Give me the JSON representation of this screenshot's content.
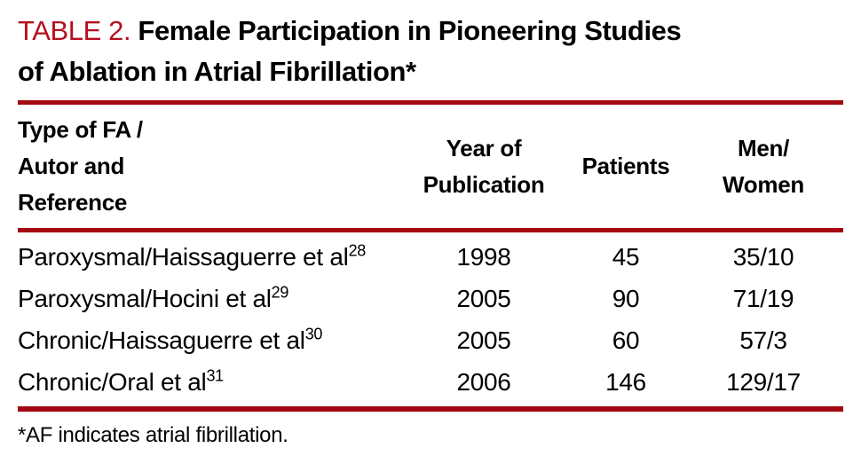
{
  "title": {
    "label": "TABLE 2.",
    "line1": "Female Participation in Pioneering Studies",
    "line2": "of Ablation in Atrial Fibrillation",
    "footnote_marker": "*"
  },
  "colors": {
    "rule_red": "#a40812",
    "title_label_red": "#b5101d",
    "text_black": "#000000",
    "background": "#ffffff"
  },
  "table": {
    "headers": {
      "col1": {
        "lines": [
          "Type of FA /",
          "Autor and",
          "Reference"
        ]
      },
      "col2": {
        "lines": [
          "Year of",
          "Publication"
        ]
      },
      "col3": {
        "lines": [
          "Patients"
        ]
      },
      "col4": {
        "lines": [
          "Men/",
          "Women"
        ]
      }
    },
    "rows": [
      {
        "study": "Paroxysmal/Haissaguerre et al",
        "ref": "28",
        "year": "1998",
        "patients": "45",
        "men_women": "35/10"
      },
      {
        "study": "Paroxysmal/Hocini et al",
        "ref": "29",
        "year": "2005",
        "patients": "90",
        "men_women": "71/19"
      },
      {
        "study": "Chronic/Haissaguerre et al",
        "ref": "30",
        "year": "2005",
        "patients": "60",
        "men_women": "57/3"
      },
      {
        "study": "Chronic/Oral et al",
        "ref": "31",
        "year": "2006",
        "patients": "146",
        "men_women": "129/17"
      }
    ]
  },
  "footnote": {
    "star": "*",
    "text": "AF indicates atrial fibrillation."
  }
}
